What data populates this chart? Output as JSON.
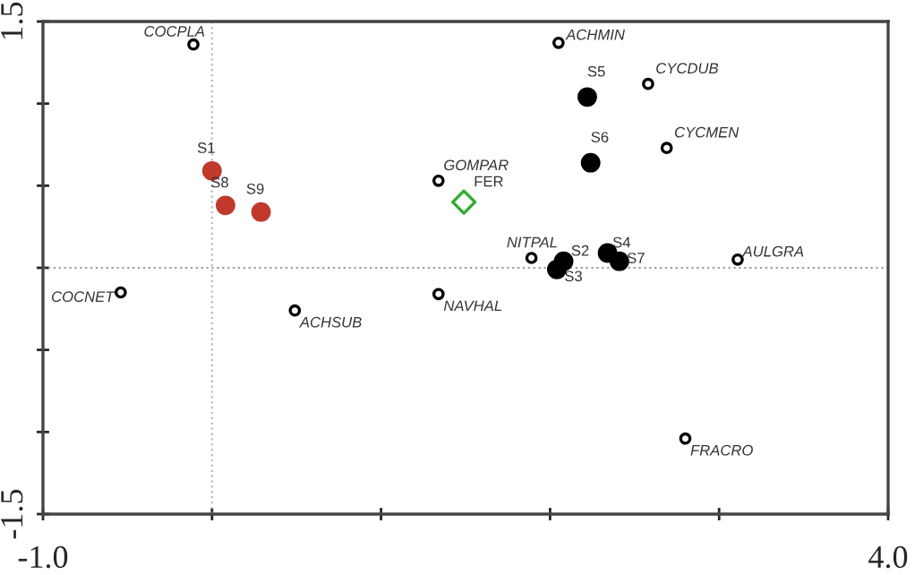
{
  "chart_data": {
    "type": "scatter",
    "xlim": [
      -1.0,
      4.0
    ],
    "ylim": [
      -1.5,
      1.5
    ],
    "xticks": [
      {
        "value": -1.0,
        "label": "-1.0"
      },
      {
        "value": 0,
        "label": null
      },
      {
        "value": 1,
        "label": null
      },
      {
        "value": 2,
        "label": null
      },
      {
        "value": 3,
        "label": null
      },
      {
        "value": 4.0,
        "label": "4.0"
      }
    ],
    "yticks": [
      {
        "value": -1.5,
        "label": "-1.5"
      },
      {
        "value": -1.0,
        "label": null
      },
      {
        "value": -0.5,
        "label": null
      },
      {
        "value": 0,
        "label": null
      },
      {
        "value": 0.5,
        "label": null
      },
      {
        "value": 1.0,
        "label": null
      },
      {
        "value": 1.5,
        "label": "1.5"
      }
    ],
    "grid": false,
    "legend": false,
    "ref_lines": [
      {
        "axis": "x",
        "value": 0,
        "color": "#bbbbbb",
        "line_style": "dotted"
      },
      {
        "axis": "y",
        "value": 0,
        "color": "#999999",
        "line_style": "dotted"
      }
    ],
    "series": [
      {
        "color": "#000000",
        "marker": "circle",
        "x": [
          -0.11,
          2.05,
          2.58,
          2.69,
          1.34,
          1.89,
          3.11,
          -0.54,
          0.49,
          1.34,
          2.8
        ],
        "values": [
          1.36,
          1.37,
          1.12,
          0.73,
          0.53,
          0.06,
          0.05,
          -0.15,
          -0.26,
          -0.16,
          -1.04
        ]
      },
      {
        "color": "#c0392b",
        "marker": "circle",
        "x": [
          0.0,
          0.08,
          0.29
        ],
        "values": [
          0.59,
          0.38,
          0.34
        ]
      },
      {
        "color": "#000000",
        "marker": "circle",
        "x": [
          2.08,
          2.04,
          2.34,
          2.22,
          2.24,
          2.41
        ],
        "values": [
          0.04,
          -0.01,
          0.09,
          1.04,
          0.64,
          0.04
        ]
      },
      {
        "color": "#33aa33",
        "marker": "diamond",
        "x": [
          1.49
        ],
        "values": [
          0.4
        ]
      }
    ],
    "annotations": [
      {
        "text": "COCPLA",
        "x": -0.11,
        "y": 1.36
      },
      {
        "text": "ACHMIN",
        "x": 2.05,
        "y": 1.37
      },
      {
        "text": "CYCDUB",
        "x": 2.58,
        "y": 1.12
      },
      {
        "text": "CYCMEN",
        "x": 2.69,
        "y": 0.73
      },
      {
        "text": "GOMPAR",
        "x": 1.34,
        "y": 0.53
      },
      {
        "text": "NITPAL",
        "x": 1.89,
        "y": 0.06
      },
      {
        "text": "AULGRA",
        "x": 3.11,
        "y": 0.05
      },
      {
        "text": "COCNET",
        "x": -0.54,
        "y": -0.15
      },
      {
        "text": "ACHSUB",
        "x": 0.49,
        "y": -0.26
      },
      {
        "text": "NAVHAL",
        "x": 1.34,
        "y": -0.16
      },
      {
        "text": "FRACRO",
        "x": 2.8,
        "y": -1.04
      },
      {
        "text": "S1",
        "x": 0.0,
        "y": 0.59
      },
      {
        "text": "S8",
        "x": 0.08,
        "y": 0.38
      },
      {
        "text": "S9",
        "x": 0.29,
        "y": 0.34
      },
      {
        "text": "S2",
        "x": 2.08,
        "y": 0.04
      },
      {
        "text": "S3",
        "x": 2.04,
        "y": -0.01
      },
      {
        "text": "S4",
        "x": 2.34,
        "y": 0.09
      },
      {
        "text": "S5",
        "x": 2.22,
        "y": 1.04
      },
      {
        "text": "S6",
        "x": 2.24,
        "y": 0.64
      },
      {
        "text": "S7",
        "x": 2.41,
        "y": 0.04
      },
      {
        "text": "FER",
        "x": 1.49,
        "y": 0.4
      }
    ]
  }
}
